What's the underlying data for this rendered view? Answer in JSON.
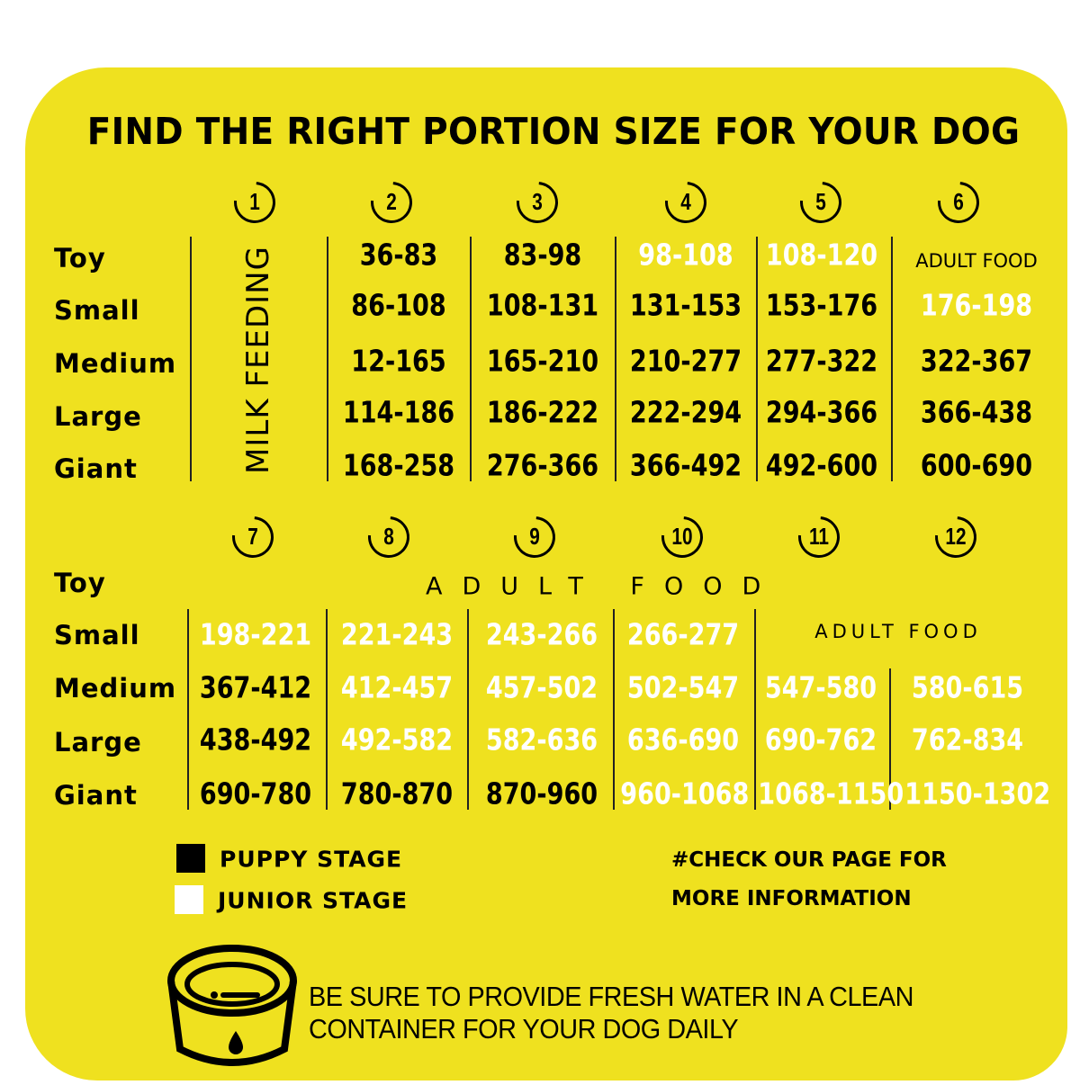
{
  "title": "FIND THE RIGHT PORTION SIZE FOR YOUR DOG",
  "colors": {
    "background": "#efe11f",
    "puppy": "#000000",
    "junior": "#ffffff"
  },
  "row_labels": [
    "Toy",
    "Small",
    "Medium",
    "Large",
    "Giant"
  ],
  "top_table": {
    "steps": [
      "1",
      "2",
      "3",
      "4",
      "5",
      "6"
    ],
    "milk_feeding": "MILK FEEDING",
    "toy_adult_food": "ADULT FOOD",
    "columns": [
      [
        {
          "t": "36-83",
          "s": "puppy"
        },
        {
          "t": "86-108",
          "s": "puppy"
        },
        {
          "t": "12-165",
          "s": "puppy"
        },
        {
          "t": "114-186",
          "s": "puppy"
        },
        {
          "t": "168-258",
          "s": "puppy"
        }
      ],
      [
        {
          "t": "83-98",
          "s": "puppy"
        },
        {
          "t": "108-131",
          "s": "puppy"
        },
        {
          "t": "165-210",
          "s": "puppy"
        },
        {
          "t": "186-222",
          "s": "puppy"
        },
        {
          "t": "276-366",
          "s": "puppy"
        }
      ],
      [
        {
          "t": "98-108",
          "s": "junior"
        },
        {
          "t": "131-153",
          "s": "puppy"
        },
        {
          "t": "210-277",
          "s": "puppy"
        },
        {
          "t": "222-294",
          "s": "puppy"
        },
        {
          "t": "366-492",
          "s": "puppy"
        }
      ],
      [
        {
          "t": "108-120",
          "s": "junior"
        },
        {
          "t": "153-176",
          "s": "puppy"
        },
        {
          "t": "277-322",
          "s": "puppy"
        },
        {
          "t": "294-366",
          "s": "puppy"
        },
        {
          "t": "492-600",
          "s": "puppy"
        }
      ],
      [
        null,
        {
          "t": "176-198",
          "s": "junior"
        },
        {
          "t": "322-367",
          "s": "puppy"
        },
        {
          "t": "366-438",
          "s": "puppy"
        },
        {
          "t": "600-690",
          "s": "puppy"
        }
      ]
    ]
  },
  "bottom_table": {
    "steps": [
      "7",
      "8",
      "9",
      "10",
      "11",
      "12"
    ],
    "toy_adult_food": "ADULT FOOD",
    "small_adult_food": "ADULT FOOD",
    "columns": [
      [
        {
          "t": "198-221",
          "s": "junior"
        },
        {
          "t": "367-412",
          "s": "puppy"
        },
        {
          "t": "438-492",
          "s": "puppy"
        },
        {
          "t": "690-780",
          "s": "puppy"
        }
      ],
      [
        {
          "t": "221-243",
          "s": "junior"
        },
        {
          "t": "412-457",
          "s": "junior"
        },
        {
          "t": "492-582",
          "s": "junior"
        },
        {
          "t": "780-870",
          "s": "puppy"
        }
      ],
      [
        {
          "t": "243-266",
          "s": "junior"
        },
        {
          "t": "457-502",
          "s": "junior"
        },
        {
          "t": "582-636",
          "s": "junior"
        },
        {
          "t": "870-960",
          "s": "puppy"
        }
      ],
      [
        {
          "t": "266-277",
          "s": "junior"
        },
        {
          "t": "502-547",
          "s": "junior"
        },
        {
          "t": "636-690",
          "s": "junior"
        },
        {
          "t": "960-1068",
          "s": "junior"
        }
      ],
      [
        null,
        {
          "t": "547-580",
          "s": "junior"
        },
        {
          "t": "690-762",
          "s": "junior"
        },
        {
          "t": "1068-1150",
          "s": "junior"
        }
      ],
      [
        null,
        {
          "t": "580-615",
          "s": "junior"
        },
        {
          "t": "762-834",
          "s": "junior"
        },
        {
          "t": "1150-1302",
          "s": "junior"
        }
      ]
    ]
  },
  "legend": {
    "puppy": "PUPPY STAGE",
    "junior": "JUNIOR STAGE"
  },
  "info": {
    "line1": "#CHECK OUR PAGE FOR",
    "line2": "MORE INFORMATION"
  },
  "water": {
    "icon": "water-bowl-icon",
    "line1": "BE SURE TO PROVIDE FRESH WATER IN A CLEAN",
    "line2": "CONTAINER FOR YOUR DOG DAILY"
  }
}
